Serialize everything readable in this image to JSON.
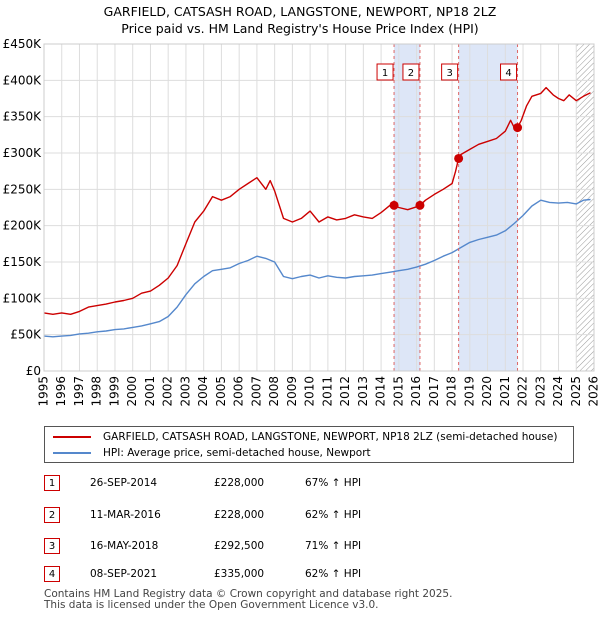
{
  "title_line1": "GARFIELD, CATSASH ROAD, LANGSTONE, NEWPORT, NP18 2LZ",
  "title_line2": "Price paid vs. HM Land Registry's House Price Index (HPI)",
  "colors": {
    "property": "#cc0000",
    "hpi": "#5588cc",
    "shade": "#dde6f7",
    "vline": "#dd6666"
  },
  "legend": {
    "property_label": "GARFIELD, CATSASH ROAD, LANGSTONE, NEWPORT, NP18 2LZ (semi-detached house)",
    "hpi_label": "HPI: Average price, semi-detached house, Newport"
  },
  "transactions": [
    {
      "num": "1",
      "date": "26-SEP-2014",
      "price": "£228,000",
      "hpi": "67% ↑ HPI"
    },
    {
      "num": "2",
      "date": "11-MAR-2016",
      "price": "£228,000",
      "hpi": "62% ↑ HPI"
    },
    {
      "num": "3",
      "date": "16-MAY-2018",
      "price": "£292,500",
      "hpi": "71% ↑ HPI"
    },
    {
      "num": "4",
      "date": "08-SEP-2021",
      "price": "£335,000",
      "hpi": "62% ↑ HPI"
    }
  ],
  "footer_line1": "Contains HM Land Registry data © Crown copyright and database right 2025.",
  "footer_line2": "This data is licensed under the Open Government Licence v3.0.",
  "chart_data": {
    "type": "line",
    "xlim": [
      1995,
      2026
    ],
    "ylim": [
      0,
      450000
    ],
    "y_ticks": [
      0,
      50000,
      100000,
      150000,
      200000,
      250000,
      300000,
      350000,
      400000,
      450000
    ],
    "y_tick_labels": [
      "£0",
      "£50K",
      "£100K",
      "£150K",
      "£200K",
      "£250K",
      "£300K",
      "£350K",
      "£400K",
      "£450K"
    ],
    "x_ticks": [
      1995,
      1996,
      1997,
      1998,
      1999,
      2000,
      2001,
      2002,
      2003,
      2004,
      2005,
      2006,
      2007,
      2008,
      2009,
      2010,
      2011,
      2012,
      2013,
      2014,
      2015,
      2016,
      2017,
      2018,
      2019,
      2020,
      2021,
      2022,
      2023,
      2024,
      2025,
      2026
    ],
    "x_tick_labels": [
      "1995",
      "1996",
      "1997",
      "1998",
      "1999",
      "2000",
      "2001",
      "2002",
      "2003",
      "2004",
      "2005",
      "2006",
      "2007",
      "2008",
      "2009",
      "2010",
      "2011",
      "2012",
      "2013",
      "2014",
      "2015",
      "2016",
      "2017",
      "2018",
      "2019",
      "2020",
      "2021",
      "2022",
      "2023",
      "2024",
      "2025",
      "2026"
    ],
    "shaded_spans": [
      [
        2014.73,
        2016.19
      ],
      [
        2018.37,
        2021.69
      ]
    ],
    "hatched_from": 2025.0,
    "series": [
      {
        "name": "GARFIELD, CATSASH ROAD, LANGSTONE, NEWPORT, NP18 2LZ (semi-detached house)",
        "color": "#cc0000",
        "x": [
          1995.0,
          1995.5,
          1996.0,
          1996.5,
          1997.0,
          1997.5,
          1998.0,
          1998.5,
          1999.0,
          1999.5,
          2000.0,
          2000.5,
          2001.0,
          2001.5,
          2002.0,
          2002.5,
          2003.0,
          2003.5,
          2004.0,
          2004.5,
          2005.0,
          2005.5,
          2006.0,
          2006.5,
          2007.0,
          2007.5,
          2007.75,
          2008.0,
          2008.5,
          2009.0,
          2009.5,
          2010.0,
          2010.5,
          2011.0,
          2011.5,
          2012.0,
          2012.5,
          2013.0,
          2013.5,
          2014.0,
          2014.5,
          2014.73,
          2015.0,
          2015.5,
          2016.0,
          2016.19,
          2016.5,
          2017.0,
          2017.5,
          2018.0,
          2018.2,
          2018.37,
          2018.5,
          2019.0,
          2019.5,
          2020.0,
          2020.5,
          2021.0,
          2021.3,
          2021.5,
          2021.69,
          2021.9,
          2022.2,
          2022.5,
          2023.0,
          2023.3,
          2023.7,
          2024.0,
          2024.3,
          2024.6,
          2025.0,
          2025.4,
          2025.8
        ],
        "y": [
          80000,
          78000,
          80000,
          78000,
          82000,
          88000,
          90000,
          92000,
          95000,
          97000,
          100000,
          107000,
          110000,
          118000,
          128000,
          145000,
          175000,
          205000,
          220000,
          240000,
          235000,
          240000,
          250000,
          258000,
          266000,
          250000,
          262000,
          248000,
          210000,
          205000,
          210000,
          220000,
          205000,
          212000,
          208000,
          210000,
          215000,
          212000,
          210000,
          218000,
          228000,
          228000,
          225000,
          222000,
          226000,
          228000,
          235000,
          243000,
          250000,
          258000,
          275000,
          292500,
          298000,
          305000,
          312000,
          316000,
          320000,
          330000,
          345000,
          335000,
          335000,
          345000,
          365000,
          378000,
          382000,
          390000,
          380000,
          375000,
          372000,
          380000,
          372000,
          378000,
          383000
        ]
      },
      {
        "name": "HPI: Average price, semi-detached house, Newport",
        "color": "#5588cc",
        "x": [
          1995.0,
          1995.5,
          1996.0,
          1996.5,
          1997.0,
          1997.5,
          1998.0,
          1998.5,
          1999.0,
          1999.5,
          2000.0,
          2000.5,
          2001.0,
          2001.5,
          2002.0,
          2002.5,
          2003.0,
          2003.5,
          2004.0,
          2004.5,
          2005.0,
          2005.5,
          2006.0,
          2006.5,
          2007.0,
          2007.5,
          2008.0,
          2008.5,
          2009.0,
          2009.5,
          2010.0,
          2010.5,
          2011.0,
          2011.5,
          2012.0,
          2012.5,
          2013.0,
          2013.5,
          2014.0,
          2014.5,
          2015.0,
          2015.5,
          2016.0,
          2016.5,
          2017.0,
          2017.5,
          2018.0,
          2018.5,
          2019.0,
          2019.5,
          2020.0,
          2020.5,
          2021.0,
          2021.5,
          2022.0,
          2022.5,
          2023.0,
          2023.5,
          2024.0,
          2024.5,
          2025.0,
          2025.4,
          2025.8
        ],
        "y": [
          48000,
          47000,
          48000,
          49000,
          51000,
          52000,
          54000,
          55000,
          57000,
          58000,
          60000,
          62000,
          65000,
          68000,
          75000,
          88000,
          105000,
          120000,
          130000,
          138000,
          140000,
          142000,
          148000,
          152000,
          158000,
          155000,
          150000,
          130000,
          127000,
          130000,
          132000,
          128000,
          131000,
          129000,
          128000,
          130000,
          131000,
          132000,
          134000,
          136000,
          138000,
          140000,
          143000,
          147000,
          152000,
          158000,
          163000,
          170000,
          177000,
          181000,
          184000,
          187000,
          193000,
          203000,
          214000,
          227000,
          235000,
          232000,
          231000,
          232000,
          230000,
          235000,
          236000
        ]
      }
    ],
    "sale_points": [
      {
        "label": "1",
        "x": 2014.73,
        "y": 228000
      },
      {
        "label": "2",
        "x": 2016.19,
        "y": 228000
      },
      {
        "label": "3",
        "x": 2018.37,
        "y": 292500
      },
      {
        "label": "4",
        "x": 2021.69,
        "y": 335000
      }
    ]
  }
}
